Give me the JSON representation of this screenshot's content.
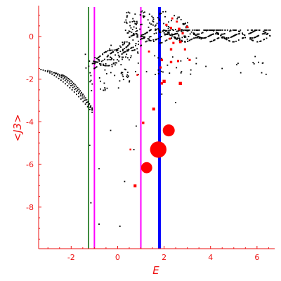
{
  "chart_data": {
    "type": "scatter",
    "xlabel": "E",
    "ylabel": "<J3>",
    "xlim": [
      -3.4,
      6.7
    ],
    "ylim": [
      -9.95,
      1.45
    ],
    "xticks": [
      -2,
      0,
      2,
      4,
      6
    ],
    "yticks": [
      0,
      -2,
      -4,
      -6,
      -8
    ],
    "colors": {
      "axis": "#ee1111",
      "ticks": "#ee1111",
      "cloud": "#000000",
      "markers": "#ff0000",
      "green_line": "#006400",
      "magenta_line": "#ff00ff",
      "blue_line": "#0000ff"
    },
    "vertical_lines": [
      {
        "x": -1.25,
        "color": "#006400",
        "width": 1.5
      },
      {
        "x": -1.0,
        "color": "#ff00ff",
        "width": 2
      },
      {
        "x": 1.0,
        "color": "#ff00ff",
        "width": 2
      },
      {
        "x": 1.8,
        "color": "#0000ff",
        "width": 4
      }
    ],
    "series": [
      {
        "marker": "black-dots",
        "description_points": [
          {
            "x": 0.1,
            "y": -8.9
          },
          {
            "x": -0.8,
            "y": -8.8
          },
          {
            "x": -1.15,
            "y": -7.8
          },
          {
            "x": -0.8,
            "y": -6.2
          },
          {
            "x": 0.3,
            "y": -6.8
          },
          {
            "x": -1.2,
            "y": -5.1
          },
          {
            "x": 0.7,
            "y": -5.3
          },
          {
            "x": 0.8,
            "y": -4.2
          },
          {
            "x": -0.3,
            "y": -4.4
          },
          {
            "x": 1.9,
            "y": -2.7
          },
          {
            "x": 2.5,
            "y": -3.1
          },
          {
            "x": 3.8,
            "y": -1.4
          },
          {
            "x": 4.5,
            "y": -1.5
          },
          {
            "x": 5.3,
            "y": -1.7
          },
          {
            "x": 6.2,
            "y": -1.7
          }
        ]
      },
      {
        "marker": "red-circles",
        "points": [
          {
            "x": 1.75,
            "y": -5.3,
            "size": 3.2
          },
          {
            "x": 1.25,
            "y": -6.15,
            "size": 2.0
          },
          {
            "x": 2.2,
            "y": -4.4,
            "size": 2.2
          },
          {
            "x": 0.75,
            "y": -7.0,
            "size": 0.8
          },
          {
            "x": 1.55,
            "y": -3.4,
            "size": 0.8
          },
          {
            "x": 1.1,
            "y": -4.05,
            "size": 0.6
          },
          {
            "x": 2.7,
            "y": -2.2,
            "size": 0.9
          },
          {
            "x": 2.0,
            "y": -2.1,
            "size": 0.9
          },
          {
            "x": 1.9,
            "y": -2.2,
            "size": 0.6
          },
          {
            "x": 1.9,
            "y": -1.1,
            "size": 0.6
          },
          {
            "x": 1.85,
            "y": -1.45,
            "size": 0.5
          },
          {
            "x": 2.3,
            "y": -1.2,
            "size": 0.6
          },
          {
            "x": 2.6,
            "y": -1.15,
            "size": 0.5
          },
          {
            "x": 3.1,
            "y": -1.1,
            "size": 0.5
          },
          {
            "x": 2.3,
            "y": -0.6,
            "size": 0.6
          },
          {
            "x": 2.7,
            "y": -0.25,
            "size": 0.7
          },
          {
            "x": 2.9,
            "y": -0.6,
            "size": 0.5
          },
          {
            "x": 2.65,
            "y": 0.35,
            "size": 0.7
          },
          {
            "x": 2.8,
            "y": 0.15,
            "size": 0.5
          },
          {
            "x": 3.0,
            "y": 0.45,
            "size": 0.5
          },
          {
            "x": 2.1,
            "y": 0.55,
            "size": 0.5
          },
          {
            "x": 2.3,
            "y": 0.4,
            "size": 0.5
          },
          {
            "x": 2.55,
            "y": 0.7,
            "size": 0.4
          },
          {
            "x": 2.35,
            "y": 0.85,
            "size": 0.4
          },
          {
            "x": 2.4,
            "y": -0.3,
            "size": 0.5
          },
          {
            "x": 2.25,
            "y": -0.1,
            "size": 0.4
          },
          {
            "x": 1.35,
            "y": -0.7,
            "size": 0.4
          },
          {
            "x": 0.85,
            "y": -1.8,
            "size": 0.3
          },
          {
            "x": 0.55,
            "y": -5.3,
            "size": 0.3
          }
        ]
      }
    ]
  }
}
